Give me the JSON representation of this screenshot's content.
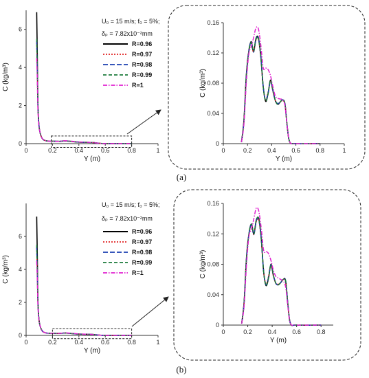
{
  "panels": [
    {
      "label": "(a)",
      "annotation": {
        "u_line": "U₀ = 15 m/s; f₀ = 5%;",
        "delta_line": "δₚ =  7.82x10⁻²mm"
      },
      "legend": [
        "R=0.96",
        "R=0.97",
        "R=0.98",
        "R=0.99",
        "R=1"
      ]
    },
    {
      "label": "(b)",
      "annotation": {
        "u_line": "U₀ = 15 m/s; f₀ = 5%;",
        "delta_line": "δₚ =  7.82x10⁻²mm"
      },
      "legend": [
        "R=0.96",
        "R=0.97",
        "R=0.98",
        "R=0.99",
        "R=1"
      ]
    }
  ],
  "series_styles": [
    {
      "name": "R=0.96",
      "color": "#000000",
      "dash": "none",
      "width": 1.6
    },
    {
      "name": "R=0.97",
      "color": "#e02020",
      "dash": "2 2",
      "width": 1.5
    },
    {
      "name": "R=0.98",
      "color": "#1a3fb0",
      "dash": "7 3",
      "width": 1.5
    },
    {
      "name": "R=0.99",
      "color": "#1a7a3a",
      "dash": "5 3",
      "width": 1.5
    },
    {
      "name": "R=1",
      "color": "#e020d0",
      "dash": "6 2 1.5 2",
      "width": 1.5
    }
  ],
  "chart_data": [
    {
      "type": "line",
      "panel": "a-main",
      "xlabel": "Y (m)",
      "ylabel": "C (kg/m³)",
      "xlim": [
        0,
        1
      ],
      "ylim": [
        0,
        7
      ],
      "xticks": [
        "0",
        "0.2",
        "0.4",
        "0.6",
        "0.8",
        "1"
      ],
      "xtick_values": [
        0,
        0.2,
        0.4,
        0.6,
        0.8,
        1
      ],
      "yticks": [
        "0",
        "2",
        "4",
        "6"
      ],
      "ytick_values": [
        0,
        2,
        4,
        6
      ],
      "series": [
        {
          "name": "R=0.96",
          "x": [
            0.08,
            0.085,
            0.09,
            0.1,
            0.12,
            0.15,
            0.2,
            0.25,
            0.3,
            0.4,
            0.5,
            0.55,
            0.6,
            0.7,
            0.8
          ],
          "y": [
            6.9,
            4.6,
            2.0,
            0.8,
            0.3,
            0.15,
            0.13,
            0.12,
            0.14,
            0.08,
            0.06,
            0.02,
            0.0,
            0.0,
            0.0
          ]
        },
        {
          "name": "R=0.97",
          "x": [
            0.08,
            0.085,
            0.09,
            0.1,
            0.12,
            0.15,
            0.2,
            0.25,
            0.3,
            0.4,
            0.5,
            0.55,
            0.6,
            0.7,
            0.8
          ],
          "y": [
            5.3,
            3.8,
            1.8,
            0.8,
            0.3,
            0.15,
            0.13,
            0.12,
            0.14,
            0.08,
            0.06,
            0.02,
            0.0,
            0.0,
            0.0
          ]
        },
        {
          "name": "R=0.98",
          "x": [
            0.08,
            0.085,
            0.09,
            0.1,
            0.12,
            0.15,
            0.2,
            0.25,
            0.3,
            0.4,
            0.5,
            0.55,
            0.6,
            0.7,
            0.8
          ],
          "y": [
            5.4,
            3.9,
            1.9,
            0.8,
            0.3,
            0.15,
            0.13,
            0.12,
            0.14,
            0.08,
            0.06,
            0.02,
            0.0,
            0.0,
            0.0
          ]
        },
        {
          "name": "R=0.99",
          "x": [
            0.08,
            0.085,
            0.09,
            0.1,
            0.12,
            0.15,
            0.2,
            0.25,
            0.3,
            0.4,
            0.5,
            0.55,
            0.6,
            0.7,
            0.8
          ],
          "y": [
            5.5,
            4.0,
            1.9,
            0.8,
            0.3,
            0.15,
            0.13,
            0.12,
            0.14,
            0.08,
            0.06,
            0.02,
            0.0,
            0.0,
            0.0
          ]
        },
        {
          "name": "R=1",
          "x": [
            0.08,
            0.085,
            0.09,
            0.1,
            0.12,
            0.15,
            0.2,
            0.25,
            0.3,
            0.4,
            0.5,
            0.55,
            0.6,
            0.7,
            0.8
          ],
          "y": [
            4.5,
            3.4,
            1.7,
            0.8,
            0.3,
            0.15,
            0.13,
            0.12,
            0.15,
            0.09,
            0.06,
            0.02,
            0.0,
            0.0,
            0.0
          ]
        }
      ],
      "zoom_box": {
        "x": [
          0.19,
          0.8
        ],
        "y": [
          -0.2,
          0.4
        ]
      }
    },
    {
      "type": "line",
      "panel": "a-zoom",
      "xlabel": "Y (m)",
      "ylabel": "C (kg/m³)",
      "xlim": [
        0,
        1
      ],
      "ylim": [
        0,
        0.16
      ],
      "xticks": [
        "0",
        "0.2",
        "0.4",
        "0.6",
        "0.8",
        "1"
      ],
      "xtick_values": [
        0,
        0.2,
        0.4,
        0.6,
        0.8,
        1
      ],
      "yticks": [
        "0",
        "0.04",
        "0.08",
        "0.12",
        "0.16"
      ],
      "ytick_values": [
        0,
        0.04,
        0.08,
        0.12,
        0.16
      ],
      "series": [
        {
          "name": "R=0.96",
          "x": [
            0.15,
            0.17,
            0.19,
            0.21,
            0.23,
            0.25,
            0.27,
            0.29,
            0.31,
            0.33,
            0.35,
            0.37,
            0.39,
            0.41,
            0.43,
            0.45,
            0.47,
            0.49,
            0.51,
            0.53,
            0.55,
            0.6,
            0.8
          ],
          "y": [
            0.002,
            0.03,
            0.09,
            0.122,
            0.135,
            0.122,
            0.139,
            0.14,
            0.115,
            0.075,
            0.056,
            0.066,
            0.084,
            0.07,
            0.057,
            0.052,
            0.055,
            0.058,
            0.052,
            0.02,
            0.002,
            0.0,
            0.0
          ]
        },
        {
          "name": "R=0.97",
          "x": [
            0.15,
            0.17,
            0.19,
            0.21,
            0.23,
            0.25,
            0.27,
            0.29,
            0.31,
            0.33,
            0.35,
            0.37,
            0.39,
            0.41,
            0.43,
            0.45,
            0.47,
            0.49,
            0.51,
            0.53,
            0.55,
            0.6,
            0.8
          ],
          "y": [
            0.002,
            0.028,
            0.088,
            0.12,
            0.133,
            0.121,
            0.137,
            0.138,
            0.114,
            0.074,
            0.058,
            0.068,
            0.082,
            0.069,
            0.057,
            0.053,
            0.055,
            0.057,
            0.051,
            0.02,
            0.002,
            0.0,
            0.0
          ]
        },
        {
          "name": "R=0.98",
          "x": [
            0.15,
            0.17,
            0.19,
            0.21,
            0.23,
            0.25,
            0.27,
            0.29,
            0.31,
            0.33,
            0.35,
            0.37,
            0.39,
            0.41,
            0.43,
            0.45,
            0.47,
            0.49,
            0.51,
            0.53,
            0.55,
            0.6,
            0.8
          ],
          "y": [
            0.002,
            0.028,
            0.088,
            0.121,
            0.134,
            0.121,
            0.138,
            0.139,
            0.115,
            0.075,
            0.057,
            0.067,
            0.083,
            0.07,
            0.057,
            0.053,
            0.055,
            0.058,
            0.052,
            0.02,
            0.002,
            0.0,
            0.0
          ]
        },
        {
          "name": "R=0.99",
          "x": [
            0.15,
            0.17,
            0.19,
            0.21,
            0.23,
            0.25,
            0.27,
            0.29,
            0.31,
            0.33,
            0.35,
            0.37,
            0.39,
            0.41,
            0.43,
            0.45,
            0.47,
            0.49,
            0.51,
            0.53,
            0.55,
            0.6,
            0.8
          ],
          "y": [
            0.002,
            0.029,
            0.089,
            0.121,
            0.134,
            0.122,
            0.138,
            0.14,
            0.115,
            0.075,
            0.056,
            0.066,
            0.084,
            0.07,
            0.057,
            0.052,
            0.055,
            0.058,
            0.052,
            0.02,
            0.002,
            0.0,
            0.0
          ]
        },
        {
          "name": "R=1",
          "x": [
            0.15,
            0.17,
            0.19,
            0.21,
            0.23,
            0.25,
            0.27,
            0.29,
            0.31,
            0.33,
            0.35,
            0.37,
            0.39,
            0.41,
            0.43,
            0.45,
            0.47,
            0.49,
            0.51,
            0.53,
            0.55,
            0.6,
            0.8
          ],
          "y": [
            0.002,
            0.025,
            0.08,
            0.118,
            0.128,
            0.14,
            0.153,
            0.152,
            0.13,
            0.1,
            0.1,
            0.098,
            0.09,
            0.075,
            0.063,
            0.06,
            0.059,
            0.058,
            0.05,
            0.02,
            0.002,
            0.0,
            0.0
          ]
        }
      ]
    },
    {
      "type": "line",
      "panel": "b-main",
      "xlabel": "Y (m)",
      "ylabel": "C (kg/m³)",
      "xlim": [
        0,
        1
      ],
      "ylim": [
        0,
        8
      ],
      "xticks": [
        "0",
        "0.2",
        "0.4",
        "0.6",
        "0.8",
        "1"
      ],
      "xtick_values": [
        0,
        0.2,
        0.4,
        0.6,
        0.8,
        1
      ],
      "yticks": [
        "0",
        "2",
        "4",
        "6"
      ],
      "ytick_values": [
        0,
        2,
        4,
        6
      ],
      "series": [
        {
          "name": "R=0.96",
          "x": [
            0.08,
            0.085,
            0.09,
            0.1,
            0.12,
            0.15,
            0.2,
            0.25,
            0.3,
            0.4,
            0.5,
            0.55,
            0.6,
            0.7,
            0.8
          ],
          "y": [
            7.2,
            4.8,
            2.0,
            0.8,
            0.3,
            0.15,
            0.13,
            0.12,
            0.14,
            0.08,
            0.06,
            0.02,
            0.0,
            0.0,
            0.0
          ]
        },
        {
          "name": "R=0.97",
          "x": [
            0.08,
            0.085,
            0.09,
            0.1,
            0.12,
            0.15,
            0.2,
            0.25,
            0.3,
            0.4,
            0.5,
            0.55,
            0.6,
            0.7,
            0.8
          ],
          "y": [
            5.3,
            3.8,
            1.8,
            0.8,
            0.3,
            0.15,
            0.13,
            0.12,
            0.14,
            0.08,
            0.06,
            0.02,
            0.0,
            0.0,
            0.0
          ]
        },
        {
          "name": "R=0.98",
          "x": [
            0.08,
            0.085,
            0.09,
            0.1,
            0.12,
            0.15,
            0.2,
            0.25,
            0.3,
            0.4,
            0.5,
            0.55,
            0.6,
            0.7,
            0.8
          ],
          "y": [
            5.4,
            3.9,
            1.9,
            0.8,
            0.3,
            0.15,
            0.13,
            0.12,
            0.14,
            0.08,
            0.06,
            0.02,
            0.0,
            0.0,
            0.0
          ]
        },
        {
          "name": "R=0.99",
          "x": [
            0.08,
            0.085,
            0.09,
            0.1,
            0.12,
            0.15,
            0.2,
            0.25,
            0.3,
            0.4,
            0.5,
            0.55,
            0.6,
            0.7,
            0.8
          ],
          "y": [
            5.5,
            4.0,
            1.9,
            0.8,
            0.3,
            0.15,
            0.13,
            0.12,
            0.14,
            0.08,
            0.06,
            0.02,
            0.0,
            0.0,
            0.0
          ]
        },
        {
          "name": "R=1",
          "x": [
            0.08,
            0.085,
            0.09,
            0.1,
            0.12,
            0.15,
            0.2,
            0.25,
            0.3,
            0.4,
            0.5,
            0.55,
            0.6,
            0.7,
            0.8
          ],
          "y": [
            4.5,
            3.4,
            1.7,
            0.8,
            0.3,
            0.15,
            0.13,
            0.12,
            0.15,
            0.09,
            0.06,
            0.02,
            0.0,
            0.0,
            0.0
          ]
        }
      ],
      "zoom_box": {
        "x": [
          0.2,
          0.8
        ],
        "y": [
          -0.2,
          0.4
        ]
      }
    },
    {
      "type": "line",
      "panel": "b-zoom",
      "xlabel": "Y (m)",
      "ylabel": "C (kg/m³)",
      "xlim": [
        0,
        0.9
      ],
      "ylim": [
        0,
        0.16
      ],
      "xticks": [
        "0",
        "0.2",
        "0.4",
        "0.6",
        "0.8"
      ],
      "xtick_values": [
        0,
        0.2,
        0.4,
        0.6,
        0.8
      ],
      "yticks": [
        "0",
        "0.04",
        "0.08",
        "0.12",
        "0.16"
      ],
      "ytick_values": [
        0,
        0.04,
        0.08,
        0.12,
        0.16
      ],
      "series": [
        {
          "name": "R=0.96",
          "x": [
            0.15,
            0.17,
            0.19,
            0.21,
            0.23,
            0.25,
            0.27,
            0.29,
            0.31,
            0.33,
            0.35,
            0.37,
            0.39,
            0.41,
            0.43,
            0.45,
            0.47,
            0.49,
            0.51,
            0.53,
            0.55,
            0.6,
            0.8
          ],
          "y": [
            0.002,
            0.03,
            0.09,
            0.12,
            0.133,
            0.12,
            0.138,
            0.14,
            0.115,
            0.07,
            0.052,
            0.062,
            0.08,
            0.065,
            0.055,
            0.053,
            0.056,
            0.06,
            0.058,
            0.025,
            0.002,
            0.0,
            0.0
          ]
        },
        {
          "name": "R=0.97",
          "x": [
            0.15,
            0.17,
            0.19,
            0.21,
            0.23,
            0.25,
            0.27,
            0.29,
            0.31,
            0.33,
            0.35,
            0.37,
            0.39,
            0.41,
            0.43,
            0.45,
            0.47,
            0.49,
            0.51,
            0.53,
            0.55,
            0.6,
            0.8
          ],
          "y": [
            0.002,
            0.028,
            0.088,
            0.119,
            0.131,
            0.119,
            0.136,
            0.138,
            0.113,
            0.07,
            0.054,
            0.064,
            0.078,
            0.064,
            0.055,
            0.054,
            0.056,
            0.059,
            0.057,
            0.024,
            0.002,
            0.0,
            0.0
          ]
        },
        {
          "name": "R=0.98",
          "x": [
            0.15,
            0.17,
            0.19,
            0.21,
            0.23,
            0.25,
            0.27,
            0.29,
            0.31,
            0.33,
            0.35,
            0.37,
            0.39,
            0.41,
            0.43,
            0.45,
            0.47,
            0.49,
            0.51,
            0.53,
            0.55,
            0.6,
            0.8
          ],
          "y": [
            0.002,
            0.028,
            0.088,
            0.12,
            0.132,
            0.119,
            0.137,
            0.139,
            0.114,
            0.07,
            0.053,
            0.063,
            0.079,
            0.065,
            0.055,
            0.053,
            0.056,
            0.06,
            0.058,
            0.025,
            0.002,
            0.0,
            0.0
          ]
        },
        {
          "name": "R=0.99",
          "x": [
            0.15,
            0.17,
            0.19,
            0.21,
            0.23,
            0.25,
            0.27,
            0.29,
            0.31,
            0.33,
            0.35,
            0.37,
            0.39,
            0.41,
            0.43,
            0.45,
            0.47,
            0.49,
            0.51,
            0.53,
            0.55,
            0.6,
            0.8
          ],
          "y": [
            0.002,
            0.029,
            0.089,
            0.12,
            0.133,
            0.12,
            0.138,
            0.14,
            0.115,
            0.07,
            0.052,
            0.062,
            0.08,
            0.065,
            0.055,
            0.053,
            0.056,
            0.06,
            0.058,
            0.025,
            0.002,
            0.0,
            0.0
          ]
        },
        {
          "name": "R=1",
          "x": [
            0.15,
            0.17,
            0.19,
            0.21,
            0.23,
            0.25,
            0.27,
            0.29,
            0.31,
            0.33,
            0.35,
            0.37,
            0.39,
            0.41,
            0.43,
            0.45,
            0.47,
            0.49,
            0.51,
            0.53,
            0.55,
            0.6,
            0.8
          ],
          "y": [
            0.002,
            0.025,
            0.08,
            0.117,
            0.126,
            0.14,
            0.154,
            0.15,
            0.128,
            0.098,
            0.097,
            0.094,
            0.085,
            0.072,
            0.064,
            0.062,
            0.06,
            0.058,
            0.05,
            0.022,
            0.002,
            0.0,
            0.0
          ]
        }
      ]
    }
  ]
}
